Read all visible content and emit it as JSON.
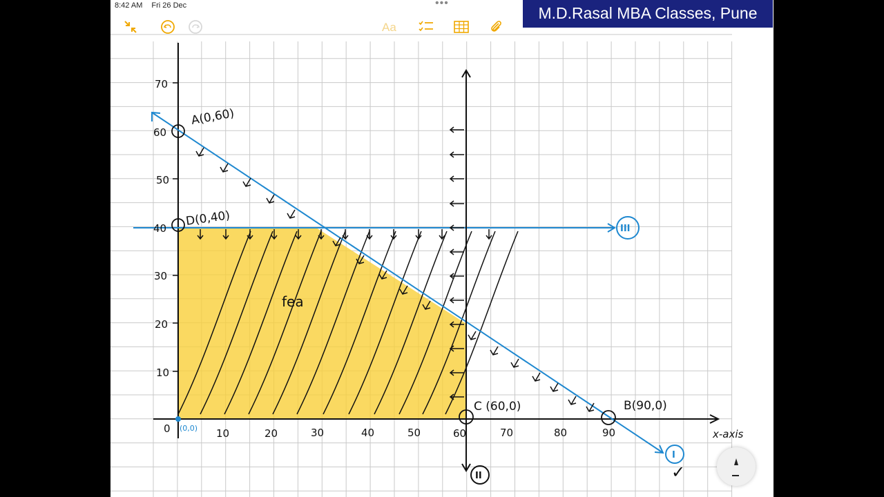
{
  "status": {
    "time": "8:42 AM",
    "date": "Fri 26 Dec"
  },
  "watermark": "M.D.Rasal MBA Classes, Pune",
  "toolbar": {
    "text_tool": "Aa"
  },
  "icons": [
    "collapse-icon",
    "undo-icon",
    "redo-icon",
    "text-icon",
    "checklist-icon",
    "table-icon",
    "attachment-icon",
    "pencil-icon"
  ],
  "graph": {
    "y_ticks": [
      "10",
      "20",
      "30",
      "40",
      "50",
      "60",
      "70"
    ],
    "x_ticks": [
      "10",
      "20",
      "30",
      "40",
      "50",
      "60",
      "70",
      "80",
      "90"
    ],
    "origin_zero": "0",
    "origin_point": "(0,0)",
    "x_axis_label": "x-axis",
    "points": {
      "A": "A(0,60)",
      "B": "B(90,0)",
      "C": "C (60,0)",
      "D": "D(0,40)"
    },
    "constraint_labels": [
      "I",
      "II",
      "III"
    ],
    "region_label": "fea",
    "tick_mark": "✓",
    "colors": {
      "line": "#1e88d0",
      "feasible": "#f9cf3a",
      "grid": "#c9c9c9",
      "ink": "#111111",
      "paper": "#ffffff"
    }
  }
}
